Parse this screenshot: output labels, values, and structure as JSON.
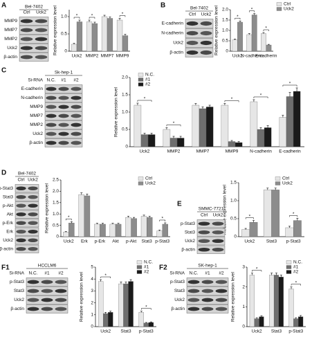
{
  "chart_data": [
    {
      "type": "bar",
      "y_label": "Relative expression level",
      "categories": [
        "Uck2",
        "MMP2",
        "MMP7",
        "MMP9"
      ],
      "series": [
        {
          "name": "Ctrl",
          "color": "#e6e6e6",
          "values": [
            0.2,
            0.85,
            1.0,
            0.9
          ],
          "errors": [
            0.03,
            0.05,
            0.04,
            0.05
          ]
        },
        {
          "name": "Uck2",
          "color": "#8c8c8c",
          "values": [
            0.85,
            0.8,
            0.95,
            0.45
          ],
          "errors": [
            0.05,
            0.04,
            0.04,
            0.04
          ]
        }
      ],
      "ylim": [
        0,
        1.2
      ],
      "yticks": [
        0,
        0.5,
        {
          "value": 1,
          "label": "1.0"
        }
      ],
      "legend": false,
      "annotations": [
        {
          "text": "*",
          "category": "Uck2"
        },
        {
          "text": "*",
          "category": "MMP2"
        },
        {
          "text": "*",
          "category": "MMP9"
        }
      ]
    },
    {
      "type": "bar",
      "y_label": "Relative expression level",
      "categories": [
        "Uck2",
        "N-cadherin",
        "E-cadherin"
      ],
      "series": [
        {
          "name": "Ctrl",
          "color": "#e6e6e6",
          "values": [
            0.55,
            0.8,
            0.85
          ],
          "errors": [
            0.04,
            0.05,
            0.05
          ]
        },
        {
          "name": "Uck2",
          "color": "#8c8c8c",
          "values": [
            1.4,
            1.75,
            0.3
          ],
          "errors": [
            0.06,
            0.06,
            0.03
          ]
        }
      ],
      "ylim": [
        0,
        2
      ],
      "yticks": [
        0,
        0.5,
        {
          "value": 1,
          "label": "1.0"
        },
        1.5,
        {
          "value": 2,
          "label": "2.0"
        }
      ],
      "legend": true,
      "annotations": [
        {
          "text": "*",
          "category": "Uck2"
        },
        {
          "text": "*",
          "category": "N-cadherin"
        },
        {
          "text": "*",
          "category": "E-cadherin"
        }
      ]
    },
    {
      "type": "bar",
      "y_label": "Relative expression level",
      "categories": [
        "Uck2",
        "MMP2",
        "MMP7",
        "MMP9",
        "N-cadherin",
        "E-cadherin"
      ],
      "series": [
        {
          "name": "N.C.",
          "color": "#e6e6e6",
          "values": [
            1.2,
            0.5,
            1.2,
            1.2,
            1.3,
            0.85
          ],
          "errors": [
            0.06,
            0.05,
            0.05,
            0.05,
            0.06,
            0.06
          ]
        },
        {
          "name": "#1",
          "color": "#6e6e6e",
          "values": [
            0.35,
            0.25,
            1.1,
            0.15,
            0.5,
            1.45
          ],
          "errors": [
            0.04,
            0.05,
            0.05,
            0.03,
            0.05,
            0.12
          ]
        },
        {
          "name": "#2",
          "color": "#1a1a1a",
          "values": [
            0.35,
            0.25,
            1.15,
            0.12,
            0.55,
            1.6
          ],
          "errors": [
            0.04,
            0.05,
            0.05,
            0.03,
            0.06,
            0.1
          ]
        }
      ],
      "ylim": [
        0,
        2
      ],
      "yticks": [
        0,
        0.5,
        {
          "value": 1,
          "label": "1.0"
        },
        1.5,
        {
          "value": 2,
          "label": "2.0"
        }
      ],
      "legend": true,
      "annotations": [
        {
          "text": "*",
          "category": "Uck2"
        },
        {
          "text": "*",
          "category": "MMP2"
        },
        {
          "text": "*",
          "category": "MMP9"
        },
        {
          "text": "*",
          "category": "N-cadherin"
        },
        {
          "text": "*",
          "category": "E-cadherin"
        }
      ]
    },
    {
      "type": "bar",
      "y_label": "Relative expression level",
      "categories": [
        "Uck2",
        "Erk",
        "p-Erk",
        "Akt",
        "p-Akt",
        "Stat3",
        "p-Stat3"
      ],
      "series": [
        {
          "name": "Ctrl",
          "color": "#e6e6e6",
          "values": [
            0.2,
            1.85,
            0.55,
            0.55,
            0.85,
            0.9,
            0.25
          ],
          "errors": [
            0.03,
            0.08,
            0.04,
            0.04,
            0.05,
            0.05,
            0.04
          ]
        },
        {
          "name": "Uck2",
          "color": "#8c8c8c",
          "values": [
            0.6,
            1.8,
            0.55,
            0.55,
            0.8,
            0.85,
            0.55
          ],
          "errors": [
            0.06,
            0.08,
            0.04,
            0.04,
            0.05,
            0.05,
            0.06
          ]
        }
      ],
      "ylim": [
        0,
        2.5
      ],
      "yticks": [
        0,
        0.5,
        {
          "value": 1,
          "label": "1.0"
        },
        1.5,
        {
          "value": 2,
          "label": "2.0"
        },
        2.5
      ],
      "legend": true,
      "annotations": [
        {
          "text": "*",
          "category": "Uck2"
        },
        {
          "text": "*",
          "category": "p-Stat3"
        }
      ]
    },
    {
      "type": "bar",
      "y_label": "Relative expression level",
      "categories": [
        "Uck2",
        "Stat3",
        "p-Stat3"
      ],
      "series": [
        {
          "name": "Ctrl",
          "color": "#e6e6e6",
          "values": [
            0.2,
            1.3,
            0.25
          ],
          "errors": [
            0.03,
            0.05,
            0.04
          ]
        },
        {
          "name": "Uck2",
          "color": "#8c8c8c",
          "values": [
            0.4,
            1.3,
            0.45
          ],
          "errors": [
            0.05,
            0.05,
            0.06
          ]
        }
      ],
      "ylim": [
        0,
        1.5
      ],
      "yticks": [
        0,
        0.5,
        {
          "value": 1,
          "label": "1.0"
        },
        1.5
      ],
      "legend": true,
      "annotations": [
        {
          "text": "*",
          "category": "Uck2"
        },
        {
          "text": "*",
          "category": "p-Stat3"
        }
      ]
    },
    {
      "type": "bar",
      "y_label": "Relative expression level",
      "categories": [
        "Uck2",
        "Stat3",
        "p-Stat3"
      ],
      "series": [
        {
          "name": "N.C.",
          "color": "#e6e6e6",
          "values": [
            3.8,
            3.6,
            1.2
          ],
          "errors": [
            0.15,
            0.15,
            0.1
          ]
        },
        {
          "name": "#1",
          "color": "#6e6e6e",
          "values": [
            1.1,
            3.6,
            0.3
          ],
          "errors": [
            0.1,
            0.15,
            0.05
          ]
        },
        {
          "name": "#2",
          "color": "#1a1a1a",
          "values": [
            1.2,
            3.8,
            0.35
          ],
          "errors": [
            0.1,
            0.15,
            0.05
          ]
        }
      ],
      "ylim": [
        0,
        5
      ],
      "yticks": [
        0,
        1,
        2,
        3,
        4,
        5
      ],
      "legend": true,
      "annotations": [
        {
          "text": "*",
          "category": "Uck2"
        },
        {
          "text": "*",
          "category": "p-Stat3"
        }
      ]
    },
    {
      "type": "bar",
      "y_label": "Relative expression level",
      "categories": [
        "Uck2",
        "Stat3",
        "p-Stat3"
      ],
      "series": [
        {
          "name": "N.C.",
          "color": "#e6e6e6",
          "values": [
            2.6,
            2.6,
            1.9
          ],
          "errors": [
            0.1,
            0.1,
            0.1
          ]
        },
        {
          "name": "#1",
          "color": "#6e6e6e",
          "values": [
            0.4,
            2.6,
            0.4
          ],
          "errors": [
            0.05,
            0.1,
            0.05
          ]
        },
        {
          "name": "#2",
          "color": "#1a1a1a",
          "values": [
            0.5,
            2.5,
            0.5
          ],
          "errors": [
            0.05,
            0.1,
            0.06
          ]
        }
      ],
      "ylim": [
        0,
        3
      ],
      "yticks": [
        0,
        1,
        2,
        3
      ],
      "legend": true,
      "annotations": [
        {
          "text": "*",
          "category": "Uck2"
        },
        {
          "text": "*",
          "category": "p-Stat3"
        }
      ]
    }
  ],
  "blots": [
    {
      "panel": "A",
      "title": "Bel-7402",
      "columns": [
        "Ctrl",
        "Uck2"
      ],
      "rows": [
        "MMP9",
        "MMP7",
        "MMP2",
        "Uck2",
        "β-actin"
      ]
    },
    {
      "panel": "B",
      "title": "Bel-7402",
      "columns": [
        "Ctrl",
        "Uck2"
      ],
      "rows": [
        "E-cadherin",
        "N-cadherin",
        "Uck2",
        "β-actin"
      ]
    },
    {
      "panel": "C",
      "title": "Sk-hep-1",
      "row_header": "Si-RNA",
      "columns": [
        "N.C.",
        "#1",
        "#2"
      ],
      "rows": [
        "E-cadherin",
        "N-cadherin",
        "MMP9",
        "MMP7",
        "MMP2",
        "Uck2",
        "β-actin"
      ]
    },
    {
      "panel": "D",
      "title": "Bel-7402",
      "columns": [
        "Ctrl",
        "Uck2"
      ],
      "rows": [
        "p-Stat3",
        "Stat3",
        "p-Akt",
        "Akt",
        "p-Erk",
        "Erk",
        "Uck2",
        "β-actin"
      ]
    },
    {
      "panel": "E",
      "title": "SMMC-7721",
      "columns": [
        "Ctrl",
        "Uck2"
      ],
      "rows": [
        "p-Stat3",
        "Stat3",
        "Uck2",
        "β-actin"
      ]
    },
    {
      "panel": "F1",
      "title": "HCCLM6",
      "row_header": "Si-RNA",
      "columns": [
        "N.C.",
        "#1",
        "#2"
      ],
      "rows": [
        "p-Stat3",
        "Stat3",
        "Uck2",
        "β-actin"
      ]
    },
    {
      "panel": "F2",
      "title": "SK-hep-1",
      "row_header": "Si-RNA",
      "columns": [
        "N.C.",
        "#1",
        "#2"
      ],
      "rows": [
        "p-Stat3",
        "Stat3",
        "Uck2",
        "β-actin"
      ]
    }
  ]
}
